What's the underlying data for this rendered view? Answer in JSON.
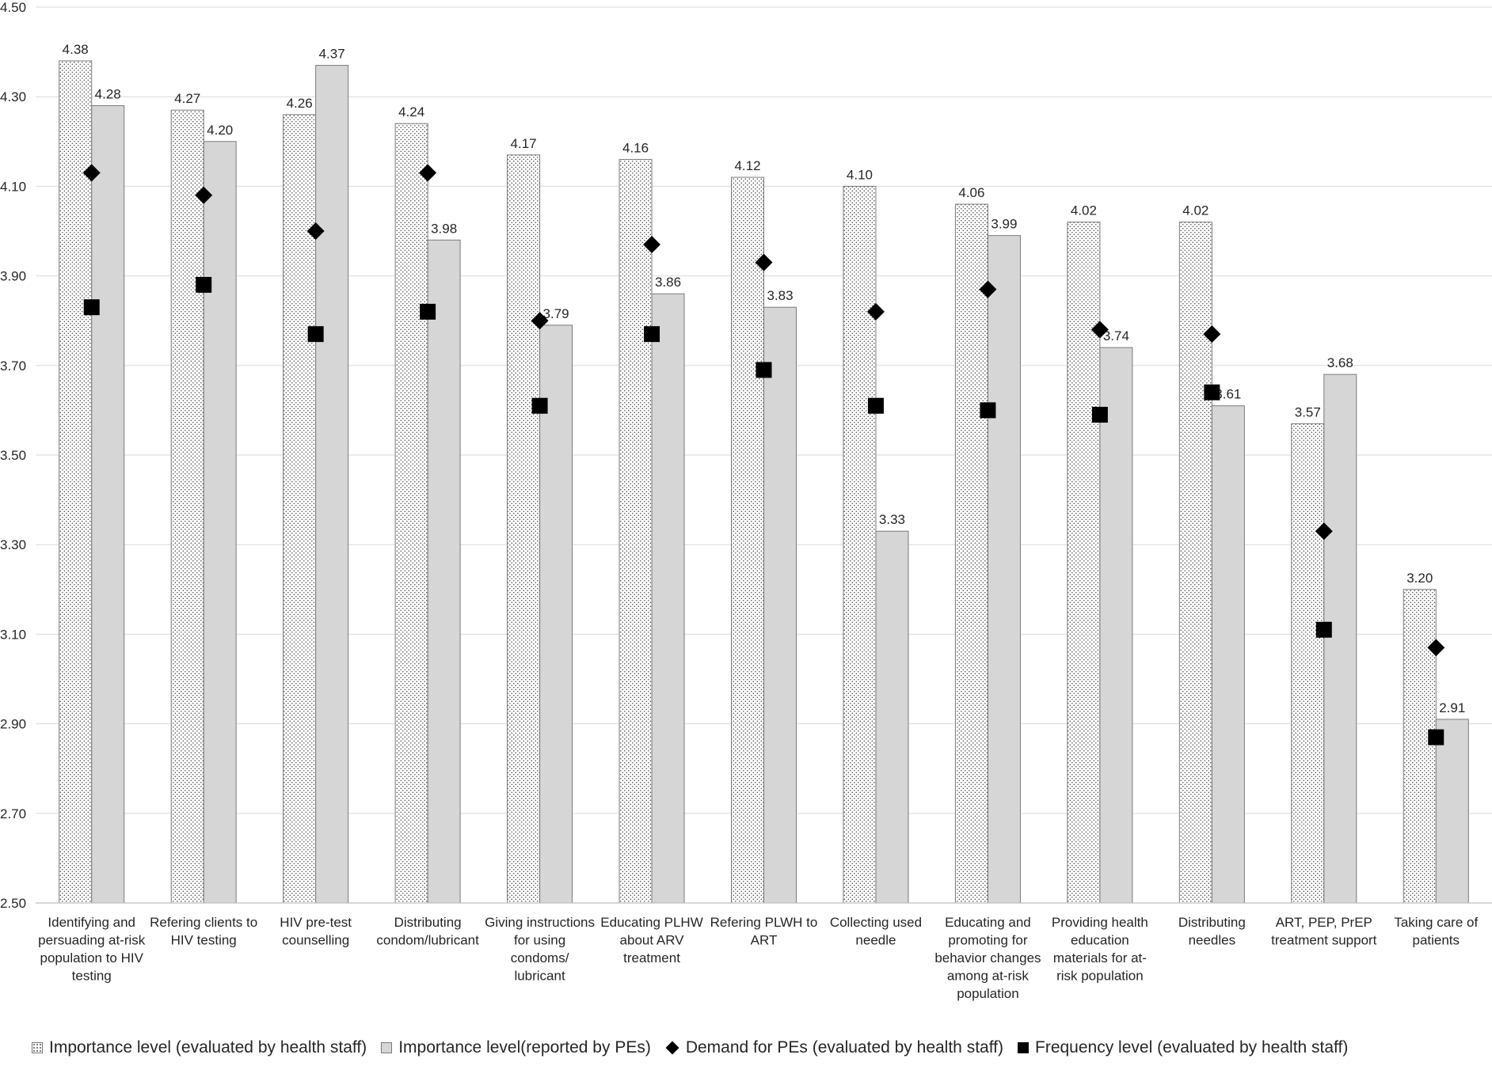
{
  "chart_data": {
    "type": "bar",
    "title": "",
    "xlabel": "",
    "ylabel": "",
    "ylim": [
      2.5,
      4.5
    ],
    "yticks": [
      "2.50",
      "2.70",
      "2.90",
      "3.10",
      "3.30",
      "3.50",
      "3.70",
      "3.90",
      "4.10",
      "4.30",
      "4.50"
    ],
    "grid": true,
    "legend_position": "bottom",
    "categories": [
      [
        "Identifying and",
        "persuading at-risk",
        "population to HIV",
        "testing"
      ],
      [
        "Refering clients to",
        "HIV testing"
      ],
      [
        "HIV pre-test",
        "counselling"
      ],
      [
        "Distributing",
        "condom/lubricant"
      ],
      [
        "Giving instructions",
        "for using",
        "condoms/",
        "lubricant"
      ],
      [
        "Educating PLHW",
        "about ARV",
        "treatment"
      ],
      [
        "Refering PLWH to",
        "ART"
      ],
      [
        "Collecting used",
        "needle"
      ],
      [
        "Educating and",
        "promoting for",
        "behavior changes",
        "among at-risk",
        "population"
      ],
      [
        "Providing health",
        "education",
        "materials for at-",
        "risk population"
      ],
      [
        "Distributing",
        "needles"
      ],
      [
        "ART, PEP, PrEP",
        "treatment support"
      ],
      [
        "Taking care of",
        "patients"
      ]
    ],
    "series": [
      {
        "name": "Importance level (evaluated by health staff)",
        "kind": "bar",
        "fill": "dotted",
        "values": [
          4.38,
          4.27,
          4.26,
          4.24,
          4.17,
          4.16,
          4.12,
          4.1,
          4.06,
          4.02,
          4.02,
          3.57,
          3.2
        ],
        "labels": [
          "4.38",
          "4.27",
          "4.26",
          "4.24",
          "4.17",
          "4.16",
          "4.12",
          "4.10",
          "4.06",
          "4.02",
          "4.02",
          "3.57",
          "3.20"
        ]
      },
      {
        "name": "Importance level(reported by PEs)",
        "kind": "bar",
        "fill": "#d6d6d6",
        "values": [
          4.28,
          4.2,
          4.37,
          3.98,
          3.79,
          3.86,
          3.83,
          3.33,
          3.99,
          3.74,
          3.61,
          3.68,
          2.91
        ],
        "labels": [
          "4.28",
          "4.20",
          "4.37",
          "3.98",
          "3.79",
          "3.86",
          "3.83",
          "3.33",
          "3.99",
          "3.74",
          "3.61",
          "3.68",
          "2.91"
        ]
      },
      {
        "name": "Demand for PEs (evaluated by health staff)",
        "kind": "marker",
        "marker": "diamond",
        "color": "#000000",
        "values": [
          4.13,
          4.08,
          4.0,
          4.13,
          3.8,
          3.97,
          3.93,
          3.82,
          3.87,
          3.78,
          3.77,
          3.33,
          3.07
        ]
      },
      {
        "name": "Frequency level (evaluated by health staff)",
        "kind": "marker",
        "marker": "square",
        "color": "#000000",
        "values": [
          3.83,
          3.88,
          3.77,
          3.82,
          3.61,
          3.77,
          3.69,
          3.61,
          3.6,
          3.59,
          3.64,
          3.11,
          2.87
        ]
      }
    ]
  }
}
